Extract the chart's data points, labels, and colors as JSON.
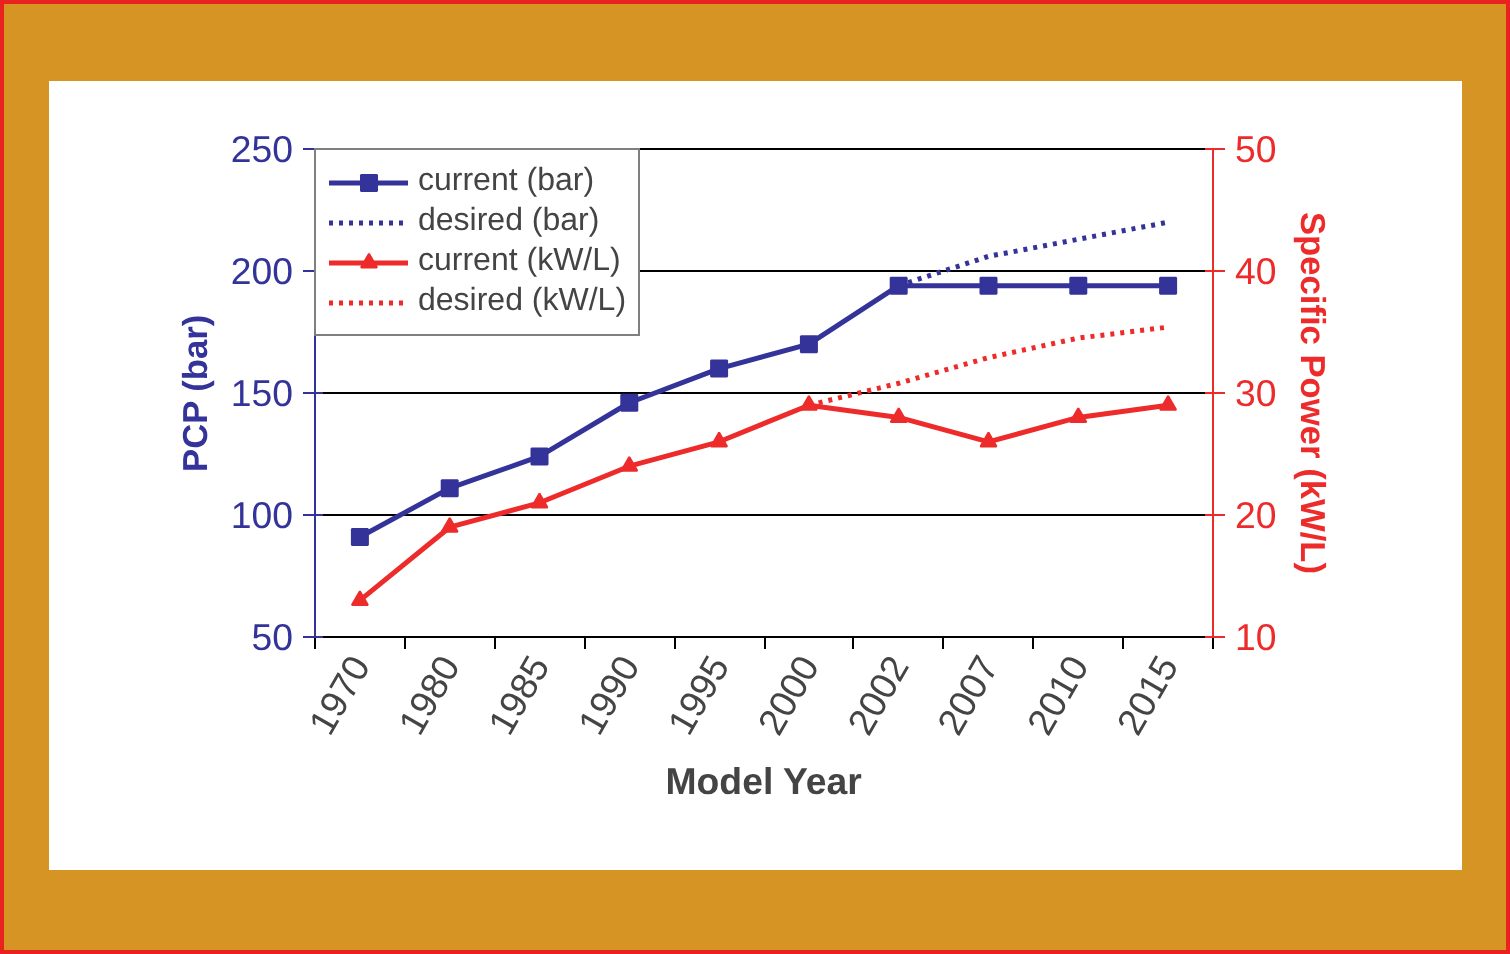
{
  "chart_data": {
    "type": "line",
    "xlabel": "Model Year",
    "ylabel": "PCP (bar)",
    "y2label": "Specific Power (kW/L)",
    "categories": [
      "1970",
      "1980",
      "1985",
      "1990",
      "1995",
      "2000",
      "2002",
      "2007",
      "2010",
      "2015"
    ],
    "ylim": [
      50,
      250
    ],
    "yticks": [
      50,
      100,
      150,
      200,
      250
    ],
    "y2lim": [
      10,
      50
    ],
    "y2ticks": [
      10,
      20,
      30,
      40,
      50
    ],
    "grid": "y",
    "legend": "top left",
    "series": [
      {
        "name": "current (bar)",
        "color": "#333399",
        "marker": "square",
        "line_style": "solid",
        "values": [
          91,
          111,
          124,
          146,
          160,
          170,
          194,
          194,
          194,
          194
        ]
      },
      {
        "name": "desired (bar)",
        "color": "#333399",
        "marker": "none",
        "line_style": "dotted",
        "values": [
          null,
          null,
          null,
          null,
          null,
          null,
          194,
          206,
          213,
          220
        ]
      },
      {
        "name": "current (kW/L)",
        "color": "#ee2b2b",
        "marker": "triangle",
        "line_style": "solid",
        "axis": "y2",
        "values": [
          13,
          19,
          21,
          24,
          26,
          29,
          28,
          26,
          28,
          29
        ]
      },
      {
        "name": "desired (kW/L)",
        "color": "#ee2b2b",
        "marker": "none",
        "line_style": "dotted",
        "axis": "y2",
        "values": [
          null,
          null,
          null,
          null,
          null,
          29,
          30.8,
          32.9,
          34.5,
          35.4
        ]
      }
    ]
  }
}
